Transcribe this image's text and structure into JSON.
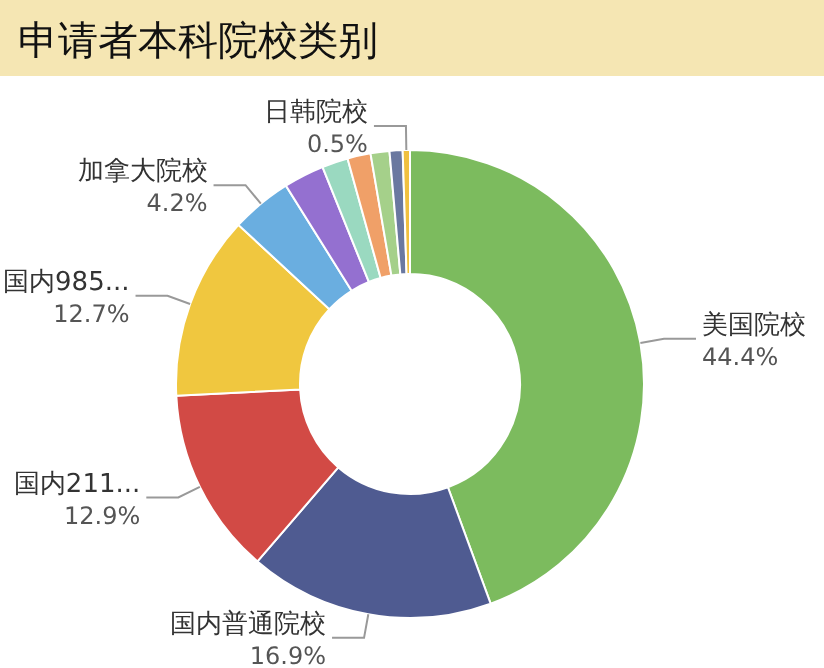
{
  "chart_data": {
    "type": "donut",
    "title": "申请者本科院校类别",
    "categories": [
      "美国院校",
      "国内普通院校",
      "国内211...",
      "国内985...",
      "加拿大院校",
      null,
      null,
      null,
      null,
      null,
      "日韩院校"
    ],
    "values": [
      44.4,
      16.9,
      12.9,
      12.7,
      4.2,
      2.8,
      1.8,
      1.6,
      1.3,
      0.9,
      0.5
    ],
    "value_labels": [
      "44.4%",
      "16.9%",
      "12.9%",
      "12.7%",
      "4.2%",
      null,
      null,
      null,
      null,
      null,
      "0.5%"
    ],
    "colors": [
      "#7cbb5e",
      "#4f5b91",
      "#d24a45",
      "#f0c73f",
      "#6aaee0",
      "#9470d0",
      "#9ad9c0",
      "#f0a068",
      "#a5d08a",
      "#6a78a0",
      "#f0c040"
    ]
  }
}
